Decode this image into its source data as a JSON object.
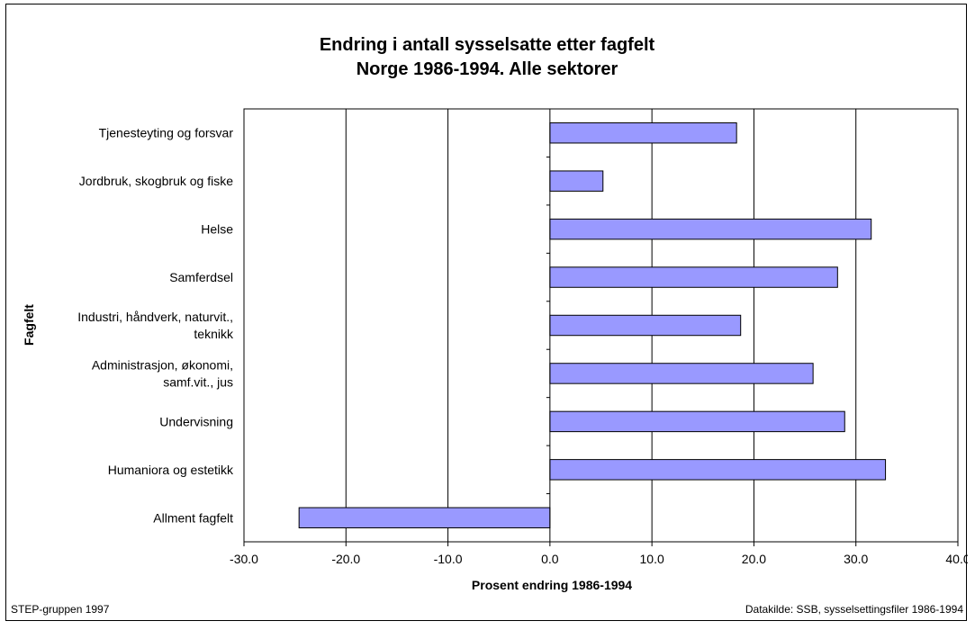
{
  "chart_data": {
    "type": "bar",
    "orientation": "horizontal",
    "title": [
      "Endring i antall sysselsatte etter fagfelt",
      "Norge 1986-1994. Alle sektorer"
    ],
    "categories": [
      [
        "Tjenesteyting og forsvar"
      ],
      [
        "Jordbruk, skogbruk og fiske"
      ],
      [
        "Helse"
      ],
      [
        "Samferdsel"
      ],
      [
        "Industri, håndverk, naturvit.,",
        "teknikk"
      ],
      [
        "Administrasjon, økonomi,",
        "samf.vit., jus"
      ],
      [
        "Undervisning"
      ],
      [
        "Humaniora og estetikk"
      ],
      [
        "Allment fagfelt"
      ]
    ],
    "values": [
      18.3,
      5.2,
      31.5,
      28.2,
      18.7,
      25.8,
      28.9,
      32.9,
      -24.6
    ],
    "xlabel": "Prosent endring 1986-1994",
    "ylabel": "Fagfelt",
    "xlim": [
      -30,
      40
    ],
    "xticks": [
      -30,
      -20,
      -10,
      0,
      10,
      20,
      30,
      40
    ],
    "xtick_labels": [
      "-30.0",
      "-20.0",
      "-10.0",
      "0.0",
      "10.0",
      "20.0",
      "30.0",
      "40.0"
    ],
    "grid": "vertical",
    "bar_color": "#9999ff",
    "bar_edge_color": "#000000"
  },
  "footer": {
    "left": "STEP-gruppen 1997",
    "right": "Datakilde: SSB, sysselsettingsfiler 1986-1994"
  }
}
